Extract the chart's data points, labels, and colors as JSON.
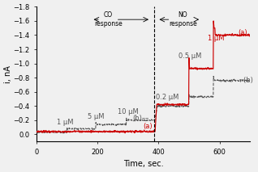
{
  "xlabel": "Time, sec.",
  "ylabel": "i, nA",
  "xlim": [
    0,
    700
  ],
  "ylim": [
    -1.8,
    0.1
  ],
  "yticks": [
    -1.8,
    -1.6,
    -1.4,
    -1.2,
    -1.0,
    -0.8,
    -0.6,
    -0.4,
    -0.2,
    0.0
  ],
  "xticks": [
    0,
    200,
    400,
    600
  ],
  "dashed_line_x": 385,
  "color_a": "#cc0000",
  "color_b": "#555555",
  "background": "#f0f0f0"
}
